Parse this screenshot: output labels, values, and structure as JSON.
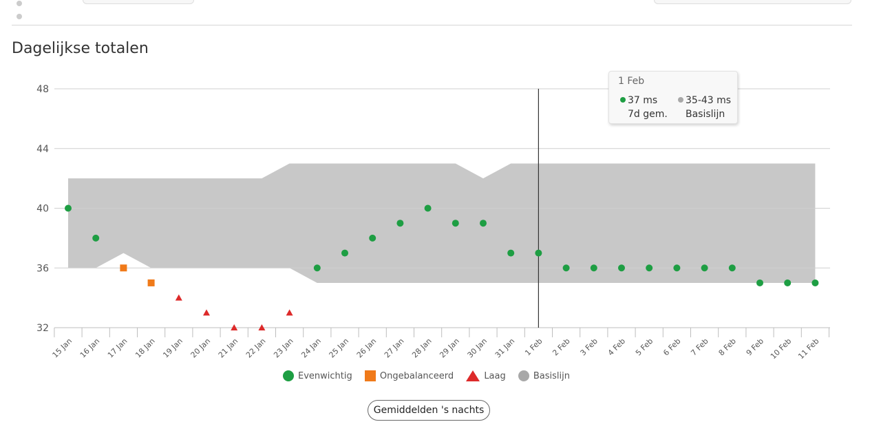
{
  "section_title": "Dagelijkse totalen",
  "tooltip": {
    "date": "1 Feb",
    "value": "37 ms",
    "value_label": "7d gem.",
    "baseline": "35-43 ms",
    "baseline_label": "Basislijn"
  },
  "legend": [
    {
      "label": "Evenwichtig",
      "symbol": "circle",
      "color": "#1e9e43"
    },
    {
      "label": "Ongebalanceerd",
      "symbol": "square",
      "color": "#f07a1a"
    },
    {
      "label": "Laag",
      "symbol": "triangle",
      "color": "#dd2a2a"
    },
    {
      "label": "Basislijn",
      "symbol": "circle",
      "color": "#a8a8a8"
    }
  ],
  "toggle_button_label": "Gemiddelden 's nachts",
  "chart_data": {
    "type": "scatter",
    "title": "Dagelijkse totalen",
    "ylim": [
      32,
      48
    ],
    "yticks": [
      32,
      36,
      40,
      44,
      48
    ],
    "grid": true,
    "legend_position": "bottom",
    "categories": [
      "15 Jan",
      "16 Jan",
      "17 Jan",
      "18 Jan",
      "19 Jan",
      "20 Jan",
      "21 Jan",
      "22 Jan",
      "23 Jan",
      "24 Jan",
      "25 Jan",
      "26 Jan",
      "27 Jan",
      "28 Jan",
      "29 Jan",
      "30 Jan",
      "31 Jan",
      "1 Feb",
      "2 Feb",
      "3 Feb",
      "4 Feb",
      "5 Feb",
      "6 Feb",
      "7 Feb",
      "8 Feb",
      "9 Feb",
      "10 Feb",
      "11 Feb"
    ],
    "values": [
      40,
      38,
      36,
      35,
      34,
      33,
      32,
      32,
      33,
      36,
      37,
      38,
      39,
      40,
      39,
      39,
      37,
      37,
      36,
      36,
      36,
      36,
      36,
      36,
      36,
      35,
      35,
      35
    ],
    "status": [
      "balanced",
      "balanced",
      "unbalanced",
      "unbalanced",
      "low",
      "low",
      "low",
      "low",
      "low",
      "balanced",
      "balanced",
      "balanced",
      "balanced",
      "balanced",
      "balanced",
      "balanced",
      "balanced",
      "balanced",
      "balanced",
      "balanced",
      "balanced",
      "balanced",
      "balanced",
      "balanced",
      "balanced",
      "balanced",
      "balanced",
      "balanced"
    ],
    "baseline_low": [
      36,
      36,
      37,
      36,
      36,
      36,
      36,
      36,
      36,
      35,
      35,
      35,
      35,
      35,
      35,
      35,
      35,
      35,
      35,
      35,
      35,
      35,
      35,
      35,
      35,
      35,
      35,
      35
    ],
    "baseline_high": [
      42,
      42,
      42,
      42,
      42,
      42,
      42,
      42,
      43,
      43,
      43,
      43,
      43,
      43,
      43,
      42,
      43,
      43,
      43,
      43,
      43,
      43,
      43,
      43,
      43,
      43,
      43,
      43
    ],
    "highlight": "1 Feb",
    "colors": {
      "balanced": "#1e9e43",
      "unbalanced": "#f07a1a",
      "low": "#dd2a2a",
      "baseline": "#c8c8c8"
    }
  }
}
